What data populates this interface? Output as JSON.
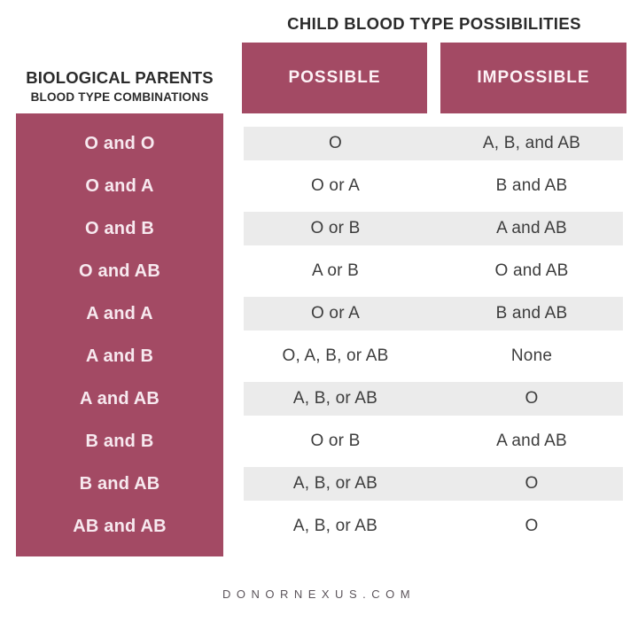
{
  "title": "CHILD BLOOD TYPE POSSIBILITIES",
  "left_header": {
    "line1": "BIOLOGICAL PARENTS",
    "line2": "BLOOD TYPE COMBINATIONS"
  },
  "columns": {
    "possible": "POSSIBLE",
    "impossible": "IMPOSSIBLE"
  },
  "rows": [
    {
      "parents": "O and O",
      "possible": "O",
      "impossible": "A, B, and AB"
    },
    {
      "parents": "O and A",
      "possible": "O or A",
      "impossible": "B and AB"
    },
    {
      "parents": "O and B",
      "possible": "O or B",
      "impossible": "A and AB"
    },
    {
      "parents": "O and AB",
      "possible": "A or B",
      "impossible": "O and AB"
    },
    {
      "parents": "A and A",
      "possible": "O or A",
      "impossible": "B and AB"
    },
    {
      "parents": "A and B",
      "possible": "O, A, B, or AB",
      "impossible": "None"
    },
    {
      "parents": "A and AB",
      "possible": "A, B, or AB",
      "impossible": "O"
    },
    {
      "parents": "B and B",
      "possible": "O or B",
      "impossible": "A and AB"
    },
    {
      "parents": "B and AB",
      "possible": "A, B, or AB",
      "impossible": "O"
    },
    {
      "parents": "AB and AB",
      "possible": "A, B, or AB",
      "impossible": "O"
    }
  ],
  "footer": "DONORNEXUS.COM",
  "colors": {
    "accent": "#a34a64",
    "row_stripe": "#ebebeb",
    "heading_text": "#2b2b2b",
    "cell_text": "#3d3d3d",
    "label_text": "#f7e9ef",
    "footer_text": "#5c555b"
  },
  "chart_data": {
    "type": "table",
    "title": "CHILD BLOOD TYPE POSSIBILITIES",
    "row_header_title": "BIOLOGICAL PARENTS BLOOD TYPE COMBINATIONS",
    "columns": [
      "Biological Parents Blood Type Combinations",
      "Possible",
      "Impossible"
    ],
    "rows": [
      [
        "O and O",
        "O",
        "A, B, and AB"
      ],
      [
        "O and A",
        "O or A",
        "B and AB"
      ],
      [
        "O and B",
        "O or B",
        "A and AB"
      ],
      [
        "O and AB",
        "A or B",
        "O and AB"
      ],
      [
        "A and A",
        "O or A",
        "B and AB"
      ],
      [
        "A and B",
        "O, A, B, or AB",
        "None"
      ],
      [
        "A and AB",
        "A, B, or AB",
        "O"
      ],
      [
        "B and B",
        "O or B",
        "A and AB"
      ],
      [
        "B and AB",
        "A, B, or AB",
        "O"
      ],
      [
        "AB and AB",
        "A, B, or AB",
        "O"
      ]
    ],
    "source": "DONORNEXUS.COM",
    "layout": {
      "striped_rows": "odd rows shaded",
      "legend": "none",
      "grid": "off"
    }
  }
}
